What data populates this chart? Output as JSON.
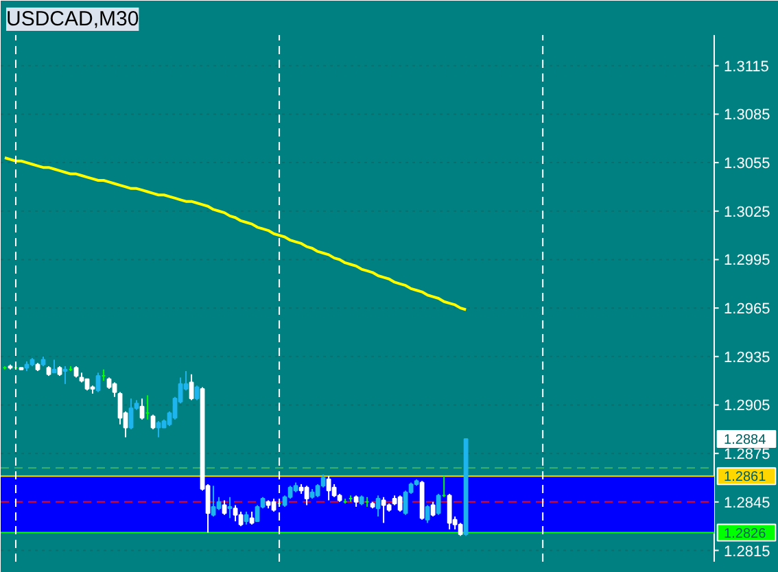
{
  "chart_data": {
    "type": "candlestick",
    "title": "USDCAD,M30",
    "ylim": [
      1.2808,
      1.3134
    ],
    "yticks": [
      1.3115,
      1.3085,
      1.3055,
      1.3025,
      1.2995,
      1.2965,
      1.2935,
      1.2905,
      1.2875,
      1.2845,
      1.2815
    ],
    "tick_labels": "y",
    "grid": "y",
    "categories": [
      null,
      null,
      null,
      null,
      null,
      null,
      null,
      null,
      null,
      null,
      null,
      null,
      null,
      null,
      null,
      null,
      null,
      null,
      null,
      null,
      null,
      null,
      null,
      null,
      null,
      null,
      null,
      null,
      null,
      null,
      null,
      null,
      null,
      null,
      null,
      null,
      null,
      null,
      null,
      null,
      null,
      null,
      null,
      null,
      null,
      null,
      null,
      null,
      null,
      null,
      null,
      null,
      null,
      null,
      null,
      null,
      null,
      null,
      null,
      null,
      null,
      null,
      null,
      null,
      null,
      null,
      null,
      null,
      null,
      null,
      null,
      null,
      null,
      null,
      null,
      null,
      null,
      null,
      null,
      null,
      null,
      null,
      null,
      null,
      null
    ],
    "ohlc": [
      [
        1.2928,
        1.2929,
        1.2927,
        1.2928
      ],
      [
        1.2929,
        1.293,
        1.2927,
        1.2928
      ],
      [
        1.2928,
        1.293,
        1.2927,
        1.2928
      ],
      [
        1.2928,
        1.2928,
        1.2927,
        1.2927
      ],
      [
        1.2928,
        1.2932,
        1.2926,
        1.293
      ],
      [
        1.293,
        1.2934,
        1.2929,
        1.2933
      ],
      [
        1.293,
        1.2931,
        1.2926,
        1.2927
      ],
      [
        1.293,
        1.2935,
        1.2929,
        1.2933
      ],
      [
        1.2928,
        1.2929,
        1.2923,
        1.2924
      ],
      [
        1.2925,
        1.2933,
        1.2925,
        1.2927
      ],
      [
        1.2928,
        1.2929,
        1.2923,
        1.2924
      ],
      [
        1.2926,
        1.2929,
        1.2918,
        1.2927
      ],
      [
        1.2927,
        1.2929,
        1.2926,
        1.2927
      ],
      [
        1.2928,
        1.2929,
        1.2922,
        1.2923
      ],
      [
        1.2922,
        1.2925,
        1.2919,
        1.292
      ],
      [
        1.2921,
        1.2921,
        1.2914,
        1.2915
      ],
      [
        1.2916,
        1.2917,
        1.2912,
        1.2915
      ],
      [
        1.2914,
        1.2925,
        1.2913,
        1.2923
      ],
      [
        1.2923,
        1.2927,
        1.292,
        1.2923
      ],
      [
        1.2921,
        1.2922,
        1.2915,
        1.2916
      ],
      [
        1.2918,
        1.2919,
        1.291,
        1.2913
      ],
      [
        1.2912,
        1.2913,
        1.2893,
        1.2897
      ],
      [
        1.29,
        1.2901,
        1.2885,
        1.2891
      ],
      [
        1.2891,
        1.2909,
        1.289,
        1.2903
      ],
      [
        1.2903,
        1.2908,
        1.2902,
        1.2906
      ],
      [
        1.2904,
        1.2909,
        1.2896,
        1.2897
      ],
      [
        1.29,
        1.2911,
        1.2896,
        1.29
      ],
      [
        1.2898,
        1.2899,
        1.289,
        1.2891
      ],
      [
        1.2891,
        1.2895,
        1.2885,
        1.2894
      ],
      [
        1.2891,
        1.2896,
        1.2891,
        1.2895
      ],
      [
        1.2893,
        1.2901,
        1.2892,
        1.29
      ],
      [
        1.2897,
        1.291,
        1.2896,
        1.2909
      ],
      [
        1.2907,
        1.2922,
        1.2906,
        1.2918
      ],
      [
        1.2915,
        1.2926,
        1.2914,
        1.2918
      ],
      [
        1.2919,
        1.2924,
        1.2908,
        1.2909
      ],
      [
        1.2909,
        1.2917,
        1.2908,
        1.2916
      ],
      [
        1.2915,
        1.2916,
        1.2852,
        1.2853
      ],
      [
        1.2855,
        1.2856,
        1.2826,
        1.2838
      ],
      [
        1.2837,
        1.2855,
        1.2836,
        1.2842
      ],
      [
        1.2841,
        1.2848,
        1.284,
        1.2845
      ],
      [
        1.2843,
        1.2846,
        1.2837,
        1.2838
      ],
      [
        1.2841,
        1.2848,
        1.2835,
        1.2842
      ],
      [
        1.2841,
        1.2843,
        1.2833,
        1.2837
      ],
      [
        1.2837,
        1.2839,
        1.283,
        1.2831
      ],
      [
        1.2833,
        1.2839,
        1.2831,
        1.2837
      ],
      [
        1.2835,
        1.2839,
        1.2831,
        1.2832
      ],
      [
        1.2833,
        1.2843,
        1.2833,
        1.2842
      ],
      [
        1.2842,
        1.2848,
        1.2841,
        1.2847
      ],
      [
        1.2845,
        1.2846,
        1.2841,
        1.2843
      ],
      [
        1.2845,
        1.2847,
        1.2839,
        1.284
      ],
      [
        1.2844,
        1.2846,
        1.2842,
        1.2844
      ],
      [
        1.2843,
        1.2849,
        1.2842,
        1.2848
      ],
      [
        1.2848,
        1.2855,
        1.2847,
        1.2854
      ],
      [
        1.2852,
        1.2857,
        1.2851,
        1.2855
      ],
      [
        1.2854,
        1.2856,
        1.285,
        1.2852
      ],
      [
        1.2854,
        1.2855,
        1.2843,
        1.2847
      ],
      [
        1.2848,
        1.2853,
        1.2847,
        1.2851
      ],
      [
        1.2849,
        1.2856,
        1.2848,
        1.2855
      ],
      [
        1.2855,
        1.2862,
        1.2854,
        1.286
      ],
      [
        1.2859,
        1.2861,
        1.2846,
        1.2852
      ],
      [
        1.2854,
        1.2856,
        1.2848,
        1.2849
      ],
      [
        1.2849,
        1.285,
        1.2845,
        1.2846
      ],
      [
        1.2845,
        1.2847,
        1.2844,
        1.2845
      ],
      [
        1.2847,
        1.2849,
        1.2845,
        1.2847
      ],
      [
        1.2848,
        1.2849,
        1.2842,
        1.2845
      ],
      [
        1.2844,
        1.2849,
        1.2843,
        1.2848
      ],
      [
        1.2845,
        1.2848,
        1.2842,
        1.2845
      ],
      [
        1.2844,
        1.2845,
        1.2841,
        1.2842
      ],
      [
        1.2841,
        1.2849,
        1.2836,
        1.2847
      ],
      [
        1.2846,
        1.2848,
        1.2832,
        1.2843
      ],
      [
        1.2843,
        1.2844,
        1.2839,
        1.284
      ],
      [
        1.2847,
        1.2849,
        1.2843,
        1.2844
      ],
      [
        1.2848,
        1.2849,
        1.2839,
        1.284
      ],
      [
        1.2838,
        1.2852,
        1.2837,
        1.2851
      ],
      [
        1.2851,
        1.2857,
        1.285,
        1.2856
      ],
      [
        1.2856,
        1.2859,
        1.2855,
        1.2858
      ],
      [
        1.2857,
        1.2858,
        1.2834,
        1.2835
      ],
      [
        1.2834,
        1.2843,
        1.2832,
        1.2842
      ],
      [
        1.2843,
        1.2845,
        1.2836,
        1.2837
      ],
      [
        1.2838,
        1.285,
        1.2837,
        1.2849
      ],
      [
        1.2849,
        1.2861,
        1.2848,
        1.2849
      ],
      [
        1.2849,
        1.285,
        1.2828,
        1.2832
      ],
      [
        1.2834,
        1.2836,
        1.2828,
        1.2831
      ],
      [
        1.2831,
        1.2832,
        1.2824,
        1.2825
      ],
      [
        1.2825,
        1.2884,
        1.2824,
        1.2884
      ]
    ],
    "colors": [
      "#00ff00",
      "#ffffff",
      "#00ff00",
      "#ffffff",
      "#1eb4ee",
      "#1eb4ee",
      "#ffffff",
      "#1eb4ee",
      "#ffffff",
      "#1eb4ee",
      "#ffffff",
      "#1eb4ee",
      "#00ff00",
      "#ffffff",
      "#ffffff",
      "#ffffff",
      "#ffffff",
      "#1eb4ee",
      "#00ff00",
      "#ffffff",
      "#ffffff",
      "#ffffff",
      "#ffffff",
      "#1eb4ee",
      "#1eb4ee",
      "#ffffff",
      "#00ff00",
      "#ffffff",
      "#1eb4ee",
      "#1eb4ee",
      "#1eb4ee",
      "#1eb4ee",
      "#1eb4ee",
      "#1eb4ee",
      "#ffffff",
      "#1eb4ee",
      "#ffffff",
      "#ffffff",
      "#1eb4ee",
      "#1eb4ee",
      "#ffffff",
      "#1eb4ee",
      "#ffffff",
      "#ffffff",
      "#1eb4ee",
      "#ffffff",
      "#1eb4ee",
      "#1eb4ee",
      "#ffffff",
      "#ffffff",
      "#00ff00",
      "#1eb4ee",
      "#1eb4ee",
      "#1eb4ee",
      "#ffffff",
      "#ffffff",
      "#1eb4ee",
      "#1eb4ee",
      "#1eb4ee",
      "#ffffff",
      "#ffffff",
      "#ffffff",
      "#00ff00",
      "#00ff00",
      "#ffffff",
      "#1eb4ee",
      "#00ff00",
      "#ffffff",
      "#1eb4ee",
      "#ffffff",
      "#ffffff",
      "#ffffff",
      "#ffffff",
      "#1eb4ee",
      "#1eb4ee",
      "#1eb4ee",
      "#ffffff",
      "#1eb4ee",
      "#ffffff",
      "#1eb4ee",
      "#00ff00",
      "#ffffff",
      "#ffffff",
      "#ffffff",
      "#1eb4ee"
    ],
    "series": [
      {
        "type": "line",
        "color": "#ffff00",
        "values": [
          1.3058,
          1.3057,
          1.3056,
          1.3056,
          1.3055,
          1.3054,
          1.3053,
          1.3052,
          1.3052,
          1.3051,
          1.305,
          1.3049,
          1.3048,
          1.3048,
          1.3047,
          1.3046,
          1.3045,
          1.3044,
          1.3044,
          1.3043,
          1.3042,
          1.3041,
          1.304,
          1.3039,
          1.3039,
          1.3038,
          1.3037,
          1.3036,
          1.3035,
          1.3035,
          1.3034,
          1.3033,
          1.3032,
          1.3031,
          1.3031,
          1.303,
          1.3029,
          1.3028,
          1.3026,
          1.3025,
          1.3024,
          1.3022,
          1.3021,
          1.3019,
          1.3018,
          1.3017,
          1.3015,
          1.3014,
          1.3013,
          1.3011,
          1.301,
          1.3009,
          1.3007,
          1.3006,
          1.3005,
          1.3003,
          1.3002,
          1.3,
          1.2999,
          1.2998,
          1.2996,
          1.2995,
          1.2993,
          1.2992,
          1.2991,
          1.2989,
          1.2988,
          1.2987,
          1.2985,
          1.2984,
          1.2983,
          1.2981,
          1.298,
          1.2979,
          1.2977,
          1.2976,
          1.2975,
          1.2973,
          1.2972,
          1.2971,
          1.2969,
          1.2968,
          1.2967,
          1.2965,
          1.2964
        ]
      }
    ],
    "bands": [
      {
        "axis": "y",
        "from": 1.2826,
        "to": 1.2861,
        "color": "#0000ff"
      }
    ],
    "ref_lines": [
      {
        "axis": "y",
        "value": 1.2866,
        "color": "#3cb371",
        "line_style": "dashed"
      },
      {
        "axis": "y",
        "value": 1.2845,
        "color": "#ff0000",
        "line_style": "dashed"
      },
      {
        "axis": "y",
        "value": 1.2861,
        "label": "1.2861",
        "color": "#ffd700",
        "line_style": "solid"
      },
      {
        "axis": "y",
        "value": 1.2826,
        "label": "1.2826",
        "color": "#00ff00",
        "line_style": "solid"
      }
    ],
    "annotations": [
      "1.2884"
    ]
  }
}
